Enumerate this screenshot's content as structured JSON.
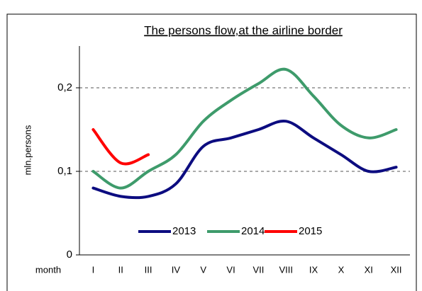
{
  "chart_data": {
    "type": "line",
    "title": "The persons flow,at the airline border",
    "xlabel": "month",
    "ylabel": "mln.persons",
    "categories": [
      "I",
      "II",
      "III",
      "IV",
      "V",
      "VI",
      "VII",
      "VIII",
      "IX",
      "X",
      "XI",
      "XII"
    ],
    "series": [
      {
        "name": "2013",
        "color": "#0c0c80",
        "values": [
          0.08,
          0.07,
          0.07,
          0.085,
          0.13,
          0.14,
          0.15,
          0.16,
          0.14,
          0.12,
          0.1,
          0.105
        ]
      },
      {
        "name": "2014",
        "color": "#3e9b6b",
        "values": [
          0.1,
          0.08,
          0.1,
          0.12,
          0.16,
          0.185,
          0.205,
          0.222,
          0.19,
          0.155,
          0.14,
          0.15
        ]
      },
      {
        "name": "2015",
        "color": "#ff0000",
        "values": [
          0.15,
          0.11,
          0.12,
          null,
          null,
          null,
          null,
          null,
          null,
          null,
          null,
          null
        ]
      }
    ],
    "ylim": [
      0,
      0.25
    ],
    "yticks": [
      {
        "value": 0,
        "label": "0"
      },
      {
        "value": 0.1,
        "label": "0,1"
      },
      {
        "value": 0.2,
        "label": "0,2"
      }
    ],
    "grid": true,
    "legend": "bottom"
  }
}
